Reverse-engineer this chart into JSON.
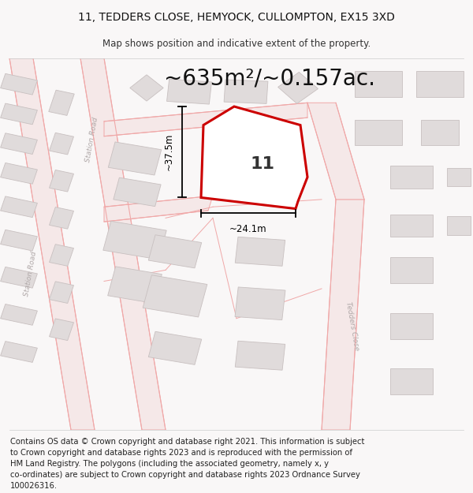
{
  "title_line1": "11, TEDDERS CLOSE, HEMYOCK, CULLOMPTON, EX15 3XD",
  "title_line2": "Map shows position and indicative extent of the property.",
  "area_text": "~635m²/~0.157ac.",
  "dim_width": "~24.1m",
  "dim_height": "~37.5m",
  "plot_number": "11",
  "footer_lines": [
    "Contains OS data © Crown copyright and database right 2021. This information is subject",
    "to Crown copyright and database rights 2023 and is reproduced with the permission of",
    "HM Land Registry. The polygons (including the associated geometry, namely x, y",
    "co-ordinates) are subject to Crown copyright and database rights 2023 Ordnance Survey",
    "100026316."
  ],
  "map_bg": "#f9f7f7",
  "road_line_color": "#f0a8a8",
  "road_fill_color": "#f5e8e8",
  "building_fill": "#e0dbdb",
  "building_edge": "#c8c0c0",
  "property_fill": "#ffffff",
  "property_edge": "#cc0000",
  "road_label_color": "#b0a8a8",
  "title_fontsize": 10,
  "subtitle_fontsize": 8.5,
  "area_fontsize": 20,
  "footer_fontsize": 7.2,
  "prop_lw": 2.2
}
